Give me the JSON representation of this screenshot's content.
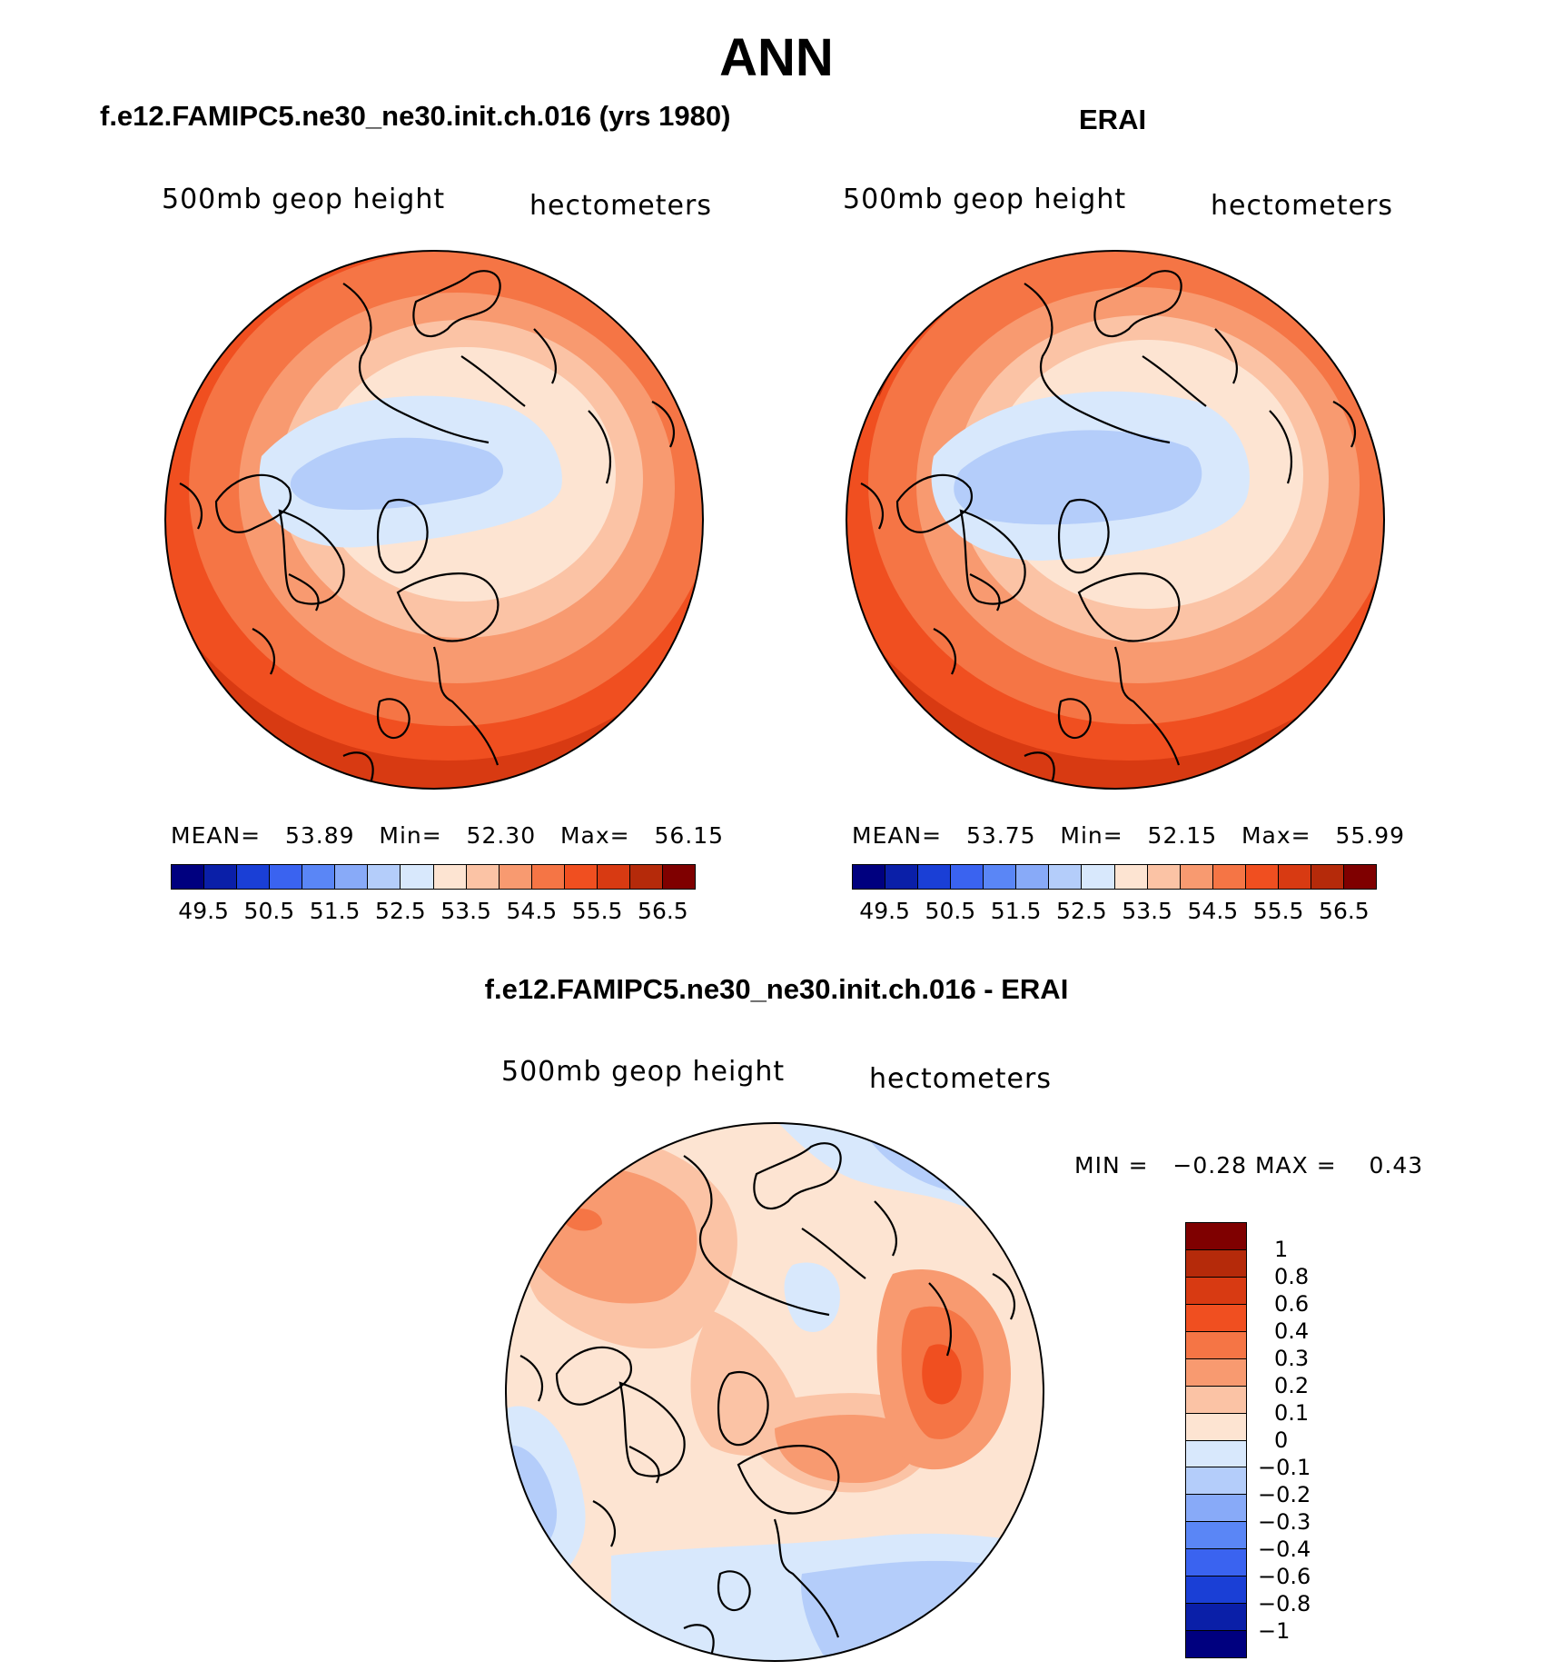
{
  "main_title": "ANN",
  "panels": [
    {
      "title": "f.e12.FAMIPC5.ne30_ne30.init.ch.016 (yrs 1980)",
      "variable": "500mb geop height",
      "units": "hectometers",
      "stats": {
        "mean_label": "MEAN=",
        "mean": "53.89",
        "min_label": "Min=",
        "min": "52.30",
        "max_label": "Max=",
        "max": "56.15"
      },
      "ticks": [
        "49.5",
        "50.5",
        "51.5",
        "52.5",
        "53.5",
        "54.5",
        "55.5",
        "56.5"
      ]
    },
    {
      "title": "ERAI",
      "variable": "500mb geop height",
      "units": "hectometers",
      "stats": {
        "mean_label": "MEAN=",
        "mean": "53.75",
        "min_label": "Min=",
        "min": "52.15",
        "max_label": "Max=",
        "max": "55.99"
      },
      "ticks": [
        "49.5",
        "50.5",
        "51.5",
        "52.5",
        "53.5",
        "54.5",
        "55.5",
        "56.5"
      ]
    }
  ],
  "diff_panel": {
    "title": "f.e12.FAMIPC5.ne30_ne30.init.ch.016 - ERAI",
    "variable": "500mb geop height",
    "units": "hectometers",
    "min_label": "MIN =",
    "min": "−0.28",
    "max_label": "MAX =",
    "max": "0.43",
    "ticks": [
      "1",
      "0.8",
      "0.6",
      "0.4",
      "0.3",
      "0.2",
      "0.1",
      "0",
      "−0.1",
      "−0.2",
      "−0.3",
      "−0.4",
      "−0.6",
      "−0.8",
      "−1"
    ]
  },
  "colors": {
    "abs_scale": [
      "#00007f",
      "#0a1fa8",
      "#1a3fd6",
      "#3a63f0",
      "#5a86f6",
      "#88aaf8",
      "#b4cdfa",
      "#d8e8fc",
      "#fde4d2",
      "#fbc3a5",
      "#f89a70",
      "#f57545",
      "#f04f20",
      "#d83a12",
      "#b52a0a",
      "#7f0000"
    ],
    "diff_scale": [
      "#7f0000",
      "#b52a0a",
      "#d83a12",
      "#f04f20",
      "#f57545",
      "#f89a70",
      "#fbc3a5",
      "#fde4d2",
      "#d8e8fc",
      "#b4cdfa",
      "#88aaf8",
      "#5a86f6",
      "#3a63f0",
      "#1a3fd6",
      "#0a1fa8",
      "#00007f"
    ]
  },
  "chart_data": [
    {
      "type": "heatmap",
      "title": "f.e12.FAMIPC5.ne30_ne30.init.ch.016 (yrs 1980)",
      "projection": "polar-stereographic-north",
      "variable": "500mb geop height",
      "units": "hectometers",
      "mean": 53.89,
      "min": 52.3,
      "max": 56.15,
      "levels": [
        49.5,
        50,
        50.5,
        51,
        51.5,
        52,
        52.5,
        53,
        53.5,
        54,
        54.5,
        55,
        55.5,
        56,
        56.5
      ]
    },
    {
      "type": "heatmap",
      "title": "ERAI",
      "projection": "polar-stereographic-north",
      "variable": "500mb geop height",
      "units": "hectometers",
      "mean": 53.75,
      "min": 52.15,
      "max": 55.99,
      "levels": [
        49.5,
        50,
        50.5,
        51,
        51.5,
        52,
        52.5,
        53,
        53.5,
        54,
        54.5,
        55,
        55.5,
        56,
        56.5
      ]
    },
    {
      "type": "heatmap",
      "title": "f.e12.FAMIPC5.ne30_ne30.init.ch.016 - ERAI",
      "projection": "polar-stereographic-north",
      "variable": "500mb geop height",
      "units": "hectometers",
      "min": -0.28,
      "max": 0.43,
      "levels": [
        -1,
        -0.8,
        -0.6,
        -0.4,
        -0.3,
        -0.2,
        -0.1,
        0,
        0.1,
        0.2,
        0.3,
        0.4,
        0.6,
        0.8,
        1
      ]
    }
  ]
}
